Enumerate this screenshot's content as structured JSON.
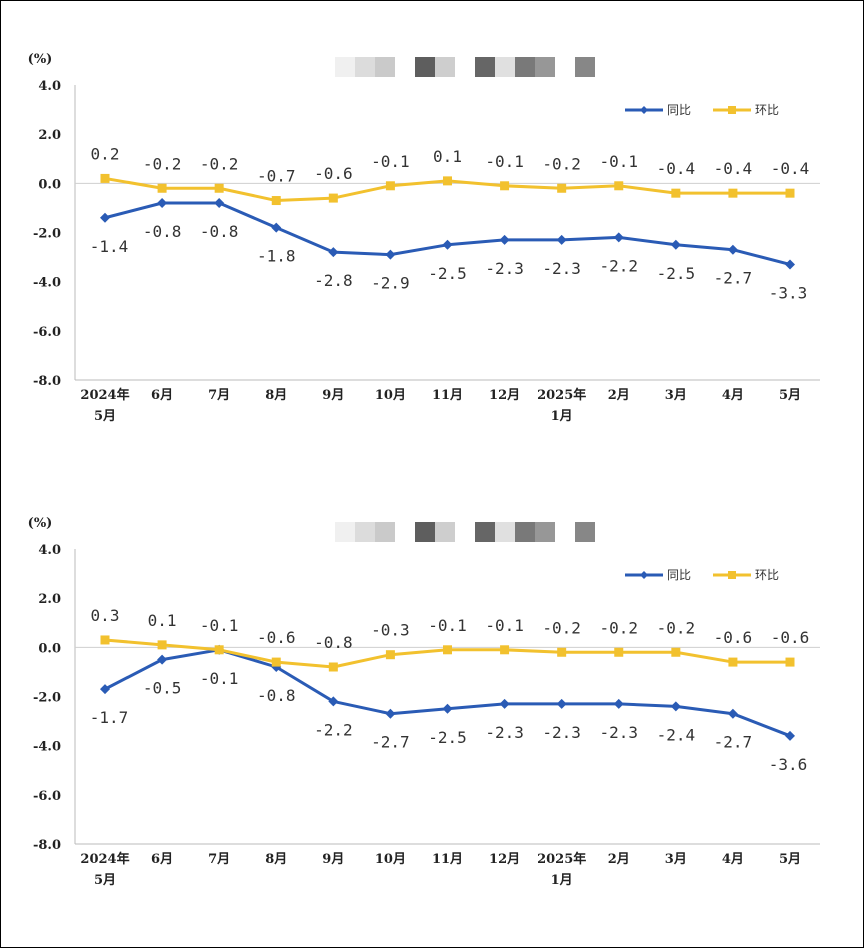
{
  "chart_data": [
    {
      "type": "line",
      "unit": "(%)",
      "categories": [
        [
          "2024年",
          "5月"
        ],
        [
          "6月"
        ],
        [
          "7月"
        ],
        [
          "8月"
        ],
        [
          "9月"
        ],
        [
          "10月"
        ],
        [
          "11月"
        ],
        [
          "12月"
        ],
        [
          "2025年",
          "1月"
        ],
        [
          "2月"
        ],
        [
          "3月"
        ],
        [
          "4月"
        ],
        [
          "5月"
        ]
      ],
      "ylim": [
        -8.0,
        4.0
      ],
      "yticks": [
        "4.0",
        "2.0",
        "0.0",
        "-2.0",
        "-4.0",
        "-6.0",
        "-8.0"
      ],
      "grid": false,
      "legend_position": "top-right",
      "series": [
        {
          "name": "同比",
          "color": "#2a5bb5",
          "marker": "diamond",
          "label_side": "below",
          "values": [
            -1.4,
            -0.8,
            -0.8,
            -1.8,
            -2.8,
            -2.9,
            -2.5,
            -2.3,
            -2.3,
            -2.2,
            -2.5,
            -2.7,
            -3.3
          ],
          "labels": [
            "-1.4",
            "-0.8",
            "-0.8",
            "-1.8",
            "-2.8",
            "-2.9",
            "-2.5",
            "-2.3",
            "-2.3",
            "-2.2",
            "-2.5",
            "-2.7",
            "-3.3"
          ]
        },
        {
          "name": "环比",
          "color": "#f2c12e",
          "marker": "square",
          "label_side": "above",
          "values": [
            0.2,
            -0.2,
            -0.2,
            -0.7,
            -0.6,
            -0.1,
            0.1,
            -0.1,
            -0.2,
            -0.1,
            -0.4,
            -0.4,
            -0.4
          ],
          "labels": [
            "0.2",
            "-0.2",
            "-0.2",
            "-0.7",
            "-0.6",
            "-0.1",
            "0.1",
            "-0.1",
            "-0.2",
            "-0.1",
            "-0.4",
            "-0.4",
            "-0.4"
          ]
        }
      ]
    },
    {
      "type": "line",
      "unit": "(%)",
      "categories": [
        [
          "2024年",
          "5月"
        ],
        [
          "6月"
        ],
        [
          "7月"
        ],
        [
          "8月"
        ],
        [
          "9月"
        ],
        [
          "10月"
        ],
        [
          "11月"
        ],
        [
          "12月"
        ],
        [
          "2025年",
          "1月"
        ],
        [
          "2月"
        ],
        [
          "3月"
        ],
        [
          "4月"
        ],
        [
          "5月"
        ]
      ],
      "ylim": [
        -8.0,
        4.0
      ],
      "yticks": [
        "4.0",
        "2.0",
        "0.0",
        "-2.0",
        "-4.0",
        "-6.0",
        "-8.0"
      ],
      "grid": false,
      "legend_position": "top-right",
      "series": [
        {
          "name": "同比",
          "color": "#2a5bb5",
          "marker": "diamond",
          "label_side": "below",
          "values": [
            -1.7,
            -0.5,
            -0.1,
            -0.8,
            -2.2,
            -2.7,
            -2.5,
            -2.3,
            -2.3,
            -2.3,
            -2.4,
            -2.7,
            -3.6
          ],
          "labels": [
            "-1.7",
            "-0.5",
            "-0.1",
            "-0.8",
            "-2.2",
            "-2.7",
            "-2.5",
            "-2.3",
            "-2.3",
            "-2.3",
            "-2.4",
            "-2.7",
            "-3.6"
          ]
        },
        {
          "name": "环比",
          "color": "#f2c12e",
          "marker": "square",
          "label_side": "above",
          "values": [
            0.3,
            0.1,
            -0.1,
            -0.6,
            -0.8,
            -0.3,
            -0.1,
            -0.1,
            -0.2,
            -0.2,
            -0.2,
            -0.6,
            -0.6
          ],
          "labels": [
            "0.3",
            "0.1",
            "-0.1",
            "-0.6",
            "-0.8",
            "-0.3",
            "-0.1",
            "-0.1",
            "-0.2",
            "-0.2",
            "-0.2",
            "-0.6",
            "-0.6"
          ]
        }
      ]
    }
  ]
}
